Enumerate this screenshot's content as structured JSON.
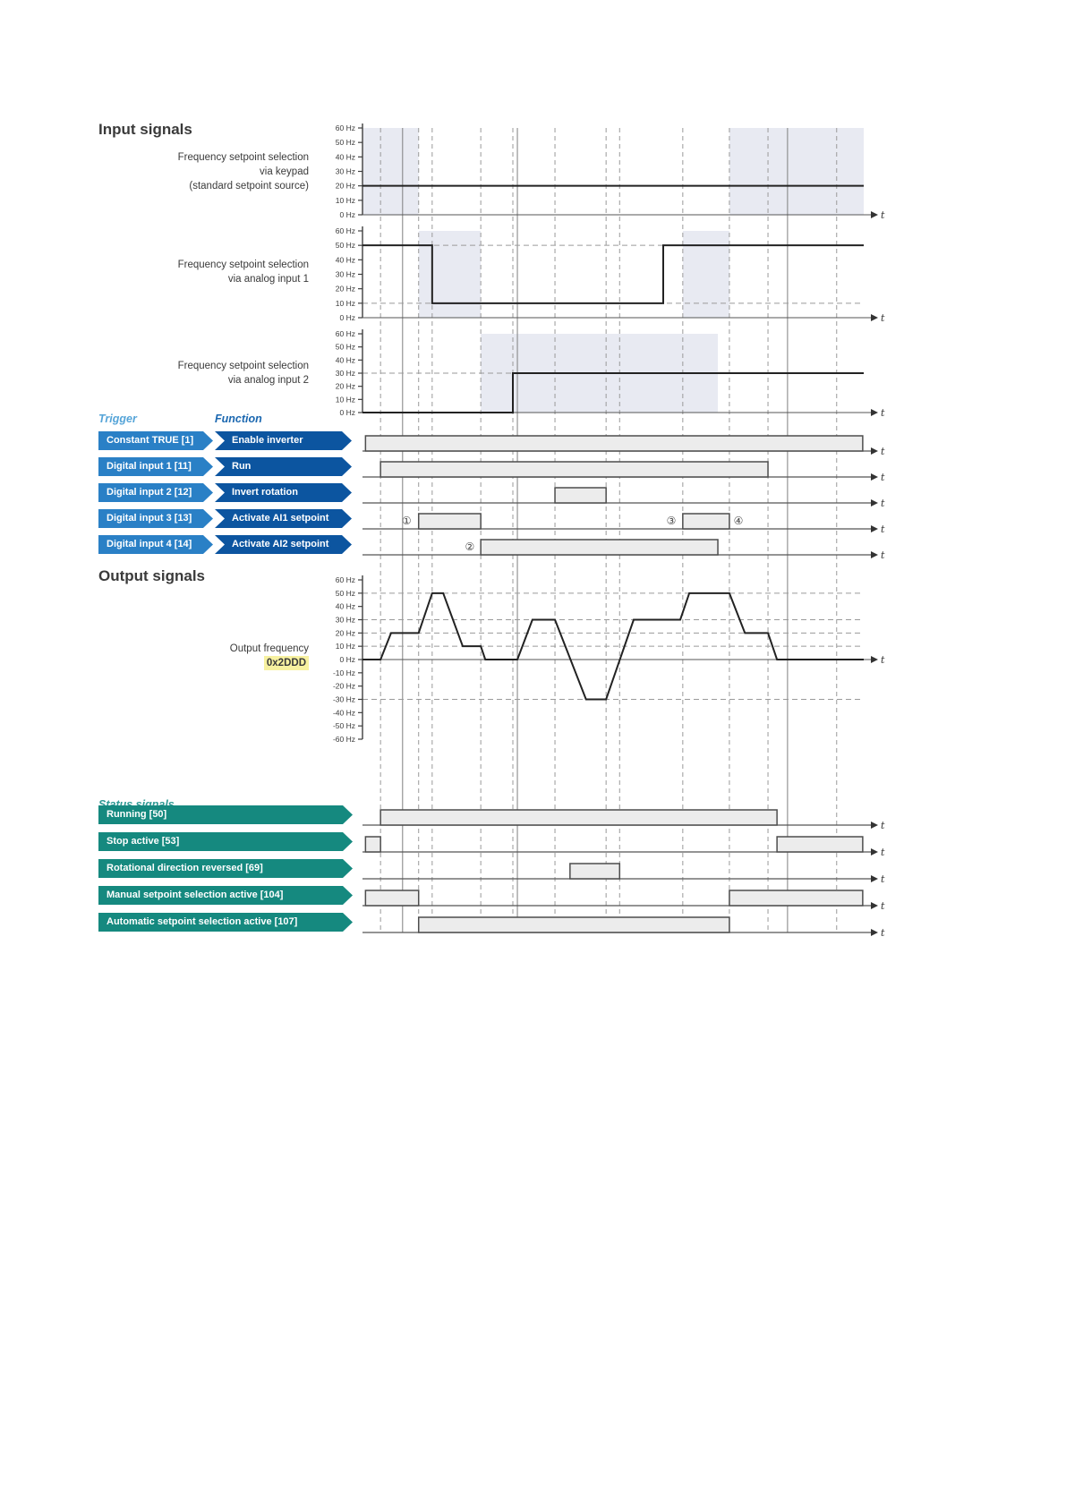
{
  "headers": {
    "input_signals": "Input signals",
    "output_signals": "Output signals",
    "trigger": "Trigger",
    "function": "Function",
    "status_signals": "Status signals"
  },
  "input_charts": [
    {
      "id": "keypad",
      "label_lines": [
        "Frequency setpoint selection",
        "via keypad",
        "(standard setpoint source)"
      ]
    },
    {
      "id": "ai1",
      "label_lines": [
        "Frequency setpoint selection",
        "via analog input 1"
      ]
    },
    {
      "id": "ai2",
      "label_lines": [
        "Frequency setpoint selection",
        "via analog input 2"
      ]
    }
  ],
  "output_chart": {
    "label": "Output frequency",
    "code": "0x2DDD"
  },
  "axis": {
    "t_label": "t",
    "yticks_input": [
      [
        60,
        "60 Hz"
      ],
      [
        50,
        "50 Hz"
      ],
      [
        40,
        "40 Hz"
      ],
      [
        30,
        "30 Hz"
      ],
      [
        20,
        "20 Hz"
      ],
      [
        10,
        "10 Hz"
      ],
      [
        0,
        "0 Hz"
      ]
    ],
    "yticks_output": [
      [
        60,
        "60 Hz"
      ],
      [
        50,
        "50 Hz"
      ],
      [
        40,
        "40 Hz"
      ],
      [
        30,
        "30 Hz"
      ],
      [
        20,
        "20 Hz"
      ],
      [
        10,
        "10 Hz"
      ],
      [
        0,
        "0 Hz"
      ],
      [
        -10,
        "-10 Hz"
      ],
      [
        -20,
        "-20 Hz"
      ],
      [
        -30,
        "-30 Hz"
      ],
      [
        -40,
        "-40 Hz"
      ],
      [
        -50,
        "-50 Hz"
      ],
      [
        -60,
        "-60 Hz"
      ]
    ]
  },
  "trigger_rows": [
    {
      "trigger": "Constant TRUE [1]",
      "function": "Enable inverter",
      "signal": "enable"
    },
    {
      "trigger": "Digital input 1 [11]",
      "function": "Run",
      "signal": "run"
    },
    {
      "trigger": "Digital input 2 [12]",
      "function": "Invert rotation",
      "signal": "invert"
    },
    {
      "trigger": "Digital input 3 [13]",
      "function": "Activate AI1 setpoint",
      "signal": "ai1_set"
    },
    {
      "trigger": "Digital input 4 [14]",
      "function": "Activate AI2 setpoint",
      "signal": "ai2_set"
    }
  ],
  "status_rows": [
    {
      "label": "Running [50]",
      "signal": "running"
    },
    {
      "label": "Stop active [53]",
      "signal": "stop"
    },
    {
      "label": "Rotational direction reversed [69]",
      "signal": "rotrev"
    },
    {
      "label": "Manual setpoint selection active [104]",
      "signal": "manual"
    },
    {
      "label": "Automatic setpoint selection active [107]",
      "signal": "auto"
    }
  ],
  "chart_data": {
    "type": "line",
    "x_axis": "time (normalized 0-1)",
    "ylim_input": [
      0,
      60
    ],
    "ylim_output": [
      -60,
      60
    ],
    "series": [
      {
        "name": "Frequency setpoint via keypad (Hz)",
        "chart": "keypad",
        "points": [
          [
            0,
            20
          ],
          [
            1,
            20
          ]
        ]
      },
      {
        "name": "Frequency setpoint via analog input 1 (Hz)",
        "chart": "ai1",
        "points": [
          [
            0,
            50
          ],
          [
            0.139,
            50
          ],
          [
            0.139,
            10
          ],
          [
            0.6,
            10
          ],
          [
            0.6,
            50
          ],
          [
            1,
            50
          ]
        ]
      },
      {
        "name": "Frequency setpoint via analog input 2 (Hz)",
        "chart": "ai2",
        "points": [
          [
            0,
            0
          ],
          [
            0.3,
            0
          ],
          [
            0.3,
            30
          ],
          [
            1,
            30
          ]
        ]
      },
      {
        "name": "Output frequency 0x2DDD (Hz)",
        "chart": "out",
        "points": [
          [
            0,
            0
          ],
          [
            0.036,
            0
          ],
          [
            0.057,
            20
          ],
          [
            0.112,
            20
          ],
          [
            0.139,
            50
          ],
          [
            0.161,
            50
          ],
          [
            0.2,
            10
          ],
          [
            0.236,
            10
          ],
          [
            0.245,
            0
          ],
          [
            0.309,
            0
          ],
          [
            0.339,
            30
          ],
          [
            0.384,
            30
          ],
          [
            0.446,
            -30
          ],
          [
            0.486,
            -30
          ],
          [
            0.541,
            30
          ],
          [
            0.634,
            30
          ],
          [
            0.652,
            50
          ],
          [
            0.732,
            50
          ],
          [
            0.763,
            20
          ],
          [
            0.809,
            20
          ],
          [
            0.827,
            0
          ],
          [
            1,
            0
          ]
        ]
      }
    ]
  },
  "digital": {
    "enable": [
      [
        0.006,
        0.998
      ]
    ],
    "run": [
      [
        0.036,
        0.809
      ]
    ],
    "invert": [
      [
        0.384,
        0.486
      ]
    ],
    "ai1_set": [
      [
        0.112,
        0.236
      ],
      [
        0.639,
        0.732
      ]
    ],
    "ai2_set": [
      [
        0.236,
        0.709
      ]
    ],
    "running": [
      [
        0.036,
        0.827
      ]
    ],
    "stop": [
      [
        0.006,
        0.036
      ],
      [
        0.827,
        0.998
      ]
    ],
    "rotrev": [
      [
        0.414,
        0.513
      ]
    ],
    "manual": [
      [
        0.006,
        0.112
      ],
      [
        0.732,
        0.998
      ]
    ],
    "auto": [
      [
        0.112,
        0.732
      ]
    ]
  },
  "markers": [
    {
      "symbol": "①",
      "row": "ai1_set",
      "frac": 0.088
    },
    {
      "symbol": "②",
      "row": "ai2_set",
      "frac": 0.214
    },
    {
      "symbol": "③",
      "row": "ai1_set",
      "frac": 0.616
    },
    {
      "symbol": "④",
      "row": "ai1_set",
      "frac": 0.75
    }
  ],
  "grid": {
    "dashed_fracs": [
      0.036,
      0.112,
      0.139,
      0.236,
      0.3,
      0.384,
      0.486,
      0.513,
      0.639,
      0.732,
      0.809,
      0.946
    ],
    "solid_fracs": [
      0.08,
      0.309,
      0.848
    ]
  },
  "ref_lines": [
    {
      "chart": "ai1",
      "hz": 10
    },
    {
      "chart": "ai1",
      "hz": 50
    },
    {
      "chart": "ai2",
      "hz": 30
    },
    {
      "chart": "out",
      "hz": 50
    },
    {
      "chart": "out",
      "hz": 30
    },
    {
      "chart": "out",
      "hz": 20
    },
    {
      "chart": "out",
      "hz": 10
    },
    {
      "chart": "out",
      "hz": -30
    }
  ],
  "shading": {
    "keypad": [
      [
        0.0,
        0.112
      ],
      [
        0.732,
        1.0
      ]
    ],
    "ai1": [
      [
        0.112,
        0.236
      ],
      [
        0.639,
        0.732
      ]
    ],
    "ai2": [
      [
        0.236,
        0.709
      ]
    ]
  },
  "colors": {
    "shading": "#e8eaf2",
    "waveform": "#222222",
    "grid_dashed": "#9a9a9a",
    "grid_solid": "#7f7f7f",
    "digital_fill": "#ececec",
    "digital_stroke": "#4d4d4d",
    "axis": "#3f3f3f",
    "baseline": "#555555",
    "tick_text": "#3b3b3b",
    "trigger_arrow": "#2a80c6",
    "function_arrow": "#0c55a0",
    "status_arrow": "#15897f",
    "trigger_header": "#55a4d8",
    "function_header": "#1a67b0",
    "status_header": "#2f9a95",
    "highlight_bg": "#f7f1a0",
    "marker": "#444444"
  }
}
